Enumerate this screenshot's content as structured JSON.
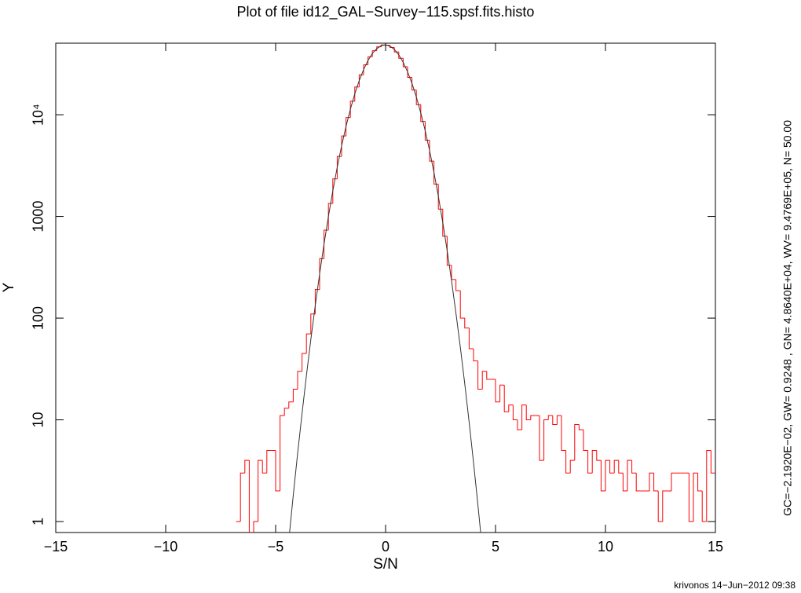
{
  "chart_data": {
    "type": "histogram",
    "title": "Plot of file id12_GAL−Survey−115.spsf.fits.histo",
    "xlabel": "S/N",
    "ylabel": "Y",
    "annotation": "GC=−2.1920E−02, GW= 0.9248     , GN= 4.8640E+04, WV= 9.4769E+05,  N=  50.00",
    "footer": "krivonos 14−Jun−2012 09:38",
    "yscale": "log",
    "color": "#ff0000",
    "bins": [
      -6.8,
      -6.6,
      -6.4,
      -6.2,
      -6,
      -5.8,
      -5.6,
      -5.4,
      -5.2,
      -5,
      -4.8,
      -4.6,
      -4.4,
      -4.2,
      -4,
      -3.8,
      -3.6,
      -3.4,
      -3.2,
      -3,
      -2.8,
      -2.6,
      -2.4,
      -2.2,
      -2,
      -1.8,
      -1.6,
      -1.4,
      -1.2,
      -1,
      -0.8,
      -0.6,
      -0.4,
      -0.2,
      0,
      0.2,
      0.4,
      0.6,
      0.8,
      1,
      1.2,
      1.4,
      1.6,
      1.8,
      2,
      2.2,
      2.4,
      2.6,
      2.8,
      3,
      3.2,
      3.4,
      3.6,
      3.8,
      4,
      4.2,
      4.4,
      4.6,
      4.8,
      5,
      5.2,
      5.4,
      5.6,
      5.8,
      6,
      6.2,
      6.4,
      6.6,
      6.8,
      7,
      7.2,
      7.4,
      7.6,
      7.8,
      8,
      8.2,
      8.4,
      8.6,
      8.8,
      9,
      9.2,
      9.4,
      9.6,
      9.8,
      10,
      10.2,
      10.4,
      10.6,
      10.8,
      11,
      11.2,
      11.4,
      11.6,
      11.8,
      12,
      12.2,
      12.4,
      12.6,
      12.8,
      13,
      13.2,
      13.4,
      13.6,
      13.8,
      14,
      14.2,
      14.4,
      14.6,
      14.8,
      15
    ],
    "values": [
      1,
      3,
      4,
      0,
      1,
      4,
      3,
      5,
      5,
      2,
      11,
      13,
      15,
      20,
      30,
      45,
      70,
      110,
      191,
      384,
      734,
      1342,
      2341,
      3897,
      6187,
      9378,
      13565,
      18722,
      24660,
      30984,
      37161,
      42560,
      46490,
      48467,
      48218,
      45780,
      41475,
      35862,
      29593,
      23298,
      17505,
      12559,
      8590,
      5613,
      3497,
      2082,
      1181,
      639,
      331,
      240,
      186,
      100,
      80,
      50,
      38,
      20,
      30,
      25,
      25,
      15,
      22,
      12,
      14,
      10,
      8,
      14,
      10,
      11,
      11,
      4,
      10,
      11,
      9,
      11,
      5,
      3,
      4,
      9,
      8,
      5,
      3,
      5,
      4,
      2,
      4,
      3,
      4,
      3,
      2,
      4,
      3,
      2,
      2,
      2,
      3,
      2,
      1,
      2,
      2,
      3,
      3,
      3,
      3,
      1,
      3,
      2,
      1,
      5,
      3
    ],
    "overlay": {
      "type": "line",
      "color": "#333333",
      "x": [
        -4.4,
        -4.2,
        -4,
        -3.8,
        -3.6,
        -3.4,
        -3.2,
        -3,
        -2.8,
        -2.6,
        -2.4,
        -2.2,
        -2,
        -1.8,
        -1.6,
        -1.4,
        -1.2,
        -1,
        -0.8,
        -0.6,
        -0.4,
        -0.2,
        0,
        0.2,
        0.4,
        0.6,
        0.8,
        1,
        1.2,
        1.4,
        1.6,
        1.8,
        2,
        2.2,
        2.4,
        2.6,
        2.8,
        3,
        3.2,
        3.4,
        3.6,
        3.8,
        4,
        4.2,
        4.4
      ],
      "values": [
        0.66,
        1.8,
        4.67,
        11.5,
        27.3,
        61.6,
        132,
        272,
        534,
        999,
        1784,
        3039,
        4938,
        7666,
        11343,
        16031,
        21611,
        27807,
        34145,
        40011,
        44744,
        47750,
        48626,
        47259,
        43829,
        38795,
        32769,
        26411,
        20317,
        14918,
        10448,
        6984,
        4457,
        2713,
        1576,
        874,
        463,
        233,
        112,
        51.7,
        22.7,
        9.5,
        3.8,
        1.45,
        0.53
      ]
    },
    "xlim": [
      -15,
      15
    ],
    "xticks": [
      {
        "value": -15,
        "label": "−15"
      },
      {
        "value": -10,
        "label": "−10"
      },
      {
        "value": -5,
        "label": "−5"
      },
      0,
      5,
      10,
      15
    ],
    "ylim": [
      0.78,
      50500
    ],
    "yticks": [
      1,
      10,
      100,
      1000,
      {
        "value": 10000,
        "label": "10⁴"
      }
    ]
  }
}
